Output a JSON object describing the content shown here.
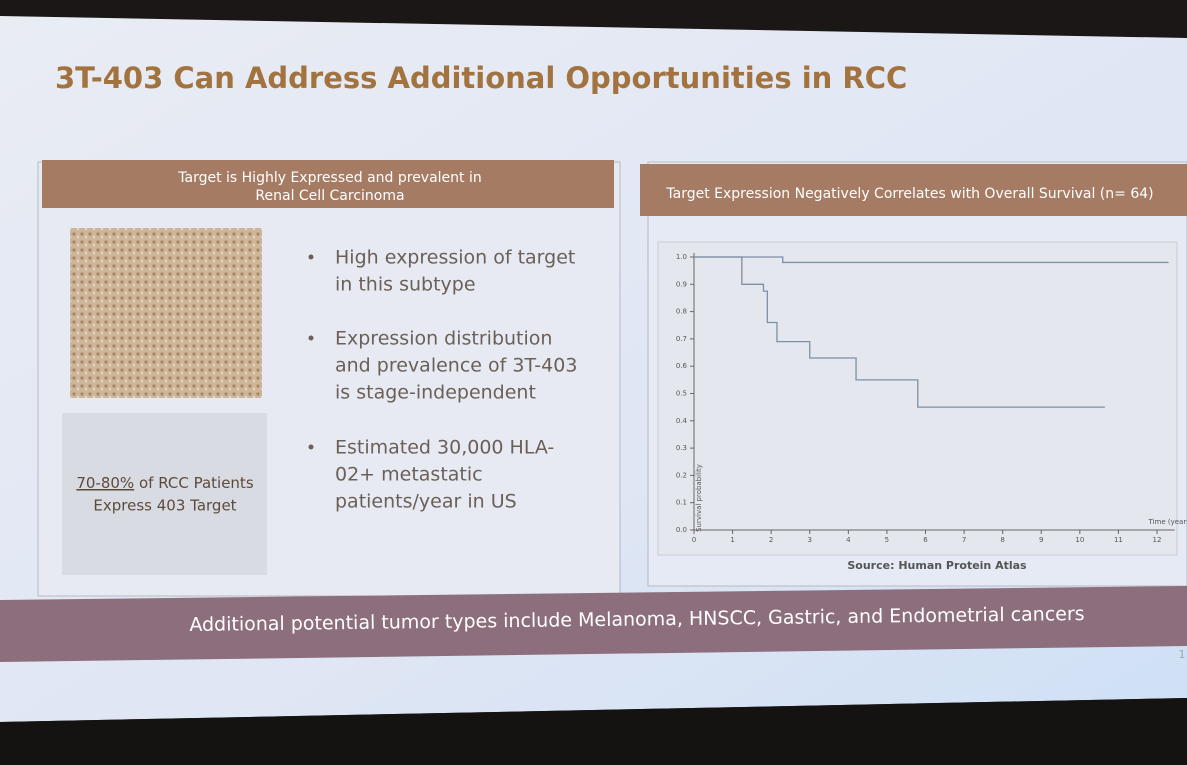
{
  "title": "3T-403 Can Address Additional Opportunities in RCC",
  "left_panel": {
    "header_lines": [
      "Target is Highly Expressed and prevalent in",
      "Renal Cell Carcinoma"
    ],
    "bullets": [
      [
        "High expression of target",
        "in this subtype"
      ],
      [
        "Expression distribution",
        "and prevalence of 3T-403",
        "is stage-independent"
      ],
      [
        "Estimated 30,000 HLA-",
        "02+ metastatic",
        "patients/year in US"
      ]
    ],
    "callout": {
      "highlight": "70-80%",
      "line1_rest": "of RCC Patients",
      "line2": "Express 403 Target"
    }
  },
  "chart_data": {
    "type": "line",
    "step": true,
    "title": "Target Expression Negatively Correlates with Overall Survival (n= 64)",
    "xlabel": "Time (years)",
    "ylabel": "Survival probability",
    "source": "Source: Human Protein Atlas",
    "xlim": [
      0,
      12.3
    ],
    "xticks": [
      0,
      1,
      2,
      3,
      4,
      5,
      6,
      7,
      8,
      9,
      10,
      11,
      12
    ],
    "ylim": [
      0,
      1
    ],
    "yticks": [
      {
        "value": 0,
        "label": "0.0"
      },
      0.1,
      0.2,
      0.3,
      0.4,
      0.5,
      0.6,
      0.7,
      0.8,
      0.9,
      {
        "value": 1,
        "label": "1.0"
      }
    ],
    "series": [
      {
        "color": "#7d8fa6",
        "x": [
          0,
          2.3,
          12.3
        ],
        "values": [
          1.0,
          0.98,
          0.98
        ]
      },
      {
        "color": "#7d8fa6",
        "x": [
          0,
          1.24,
          1.8,
          1.9,
          2.15,
          3.0,
          4.2,
          5.8,
          10.65
        ],
        "values": [
          1.0,
          0.9,
          0.875,
          0.76,
          0.69,
          0.63,
          0.55,
          0.45,
          0.45
        ]
      }
    ]
  },
  "footer": "Additional potential tumor types include Melanoma, HNSCC, Gastric, and Endometrial cancers",
  "page_number": "1"
}
